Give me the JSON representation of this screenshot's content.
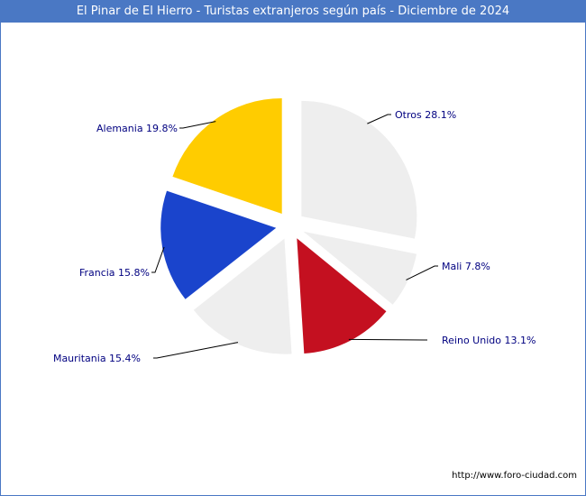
{
  "title": "El Pinar de El Hierro - Turistas extranjeros según país - Diciembre de 2024",
  "source": "http://www.foro-ciudad.com",
  "colors": {
    "title_bar": "#4a78c4",
    "label_text": "#000080"
  },
  "chart_data": {
    "type": "pie",
    "title": "El Pinar de El Hierro - Turistas extranjeros según país - Diciembre de 2024",
    "slices": [
      {
        "name": "Otros",
        "value": 28.1,
        "label": "Otros 28.1%",
        "color": "#eeeeee"
      },
      {
        "name": "Mali",
        "value": 7.8,
        "label": "Mali 7.8%",
        "color": "#eeeeee"
      },
      {
        "name": "Reino Unido",
        "value": 13.1,
        "label": "Reino Unido 13.1%",
        "color": "#c41020"
      },
      {
        "name": "Mauritania",
        "value": 15.4,
        "label": "Mauritania 15.4%",
        "color": "#eeeeee"
      },
      {
        "name": "Francia",
        "value": 15.8,
        "label": "Francia 15.8%",
        "color": "#1a44cc"
      },
      {
        "name": "Alemania",
        "value": 19.8,
        "label": "Alemania 19.8%",
        "color": "#ffcc00"
      }
    ]
  }
}
